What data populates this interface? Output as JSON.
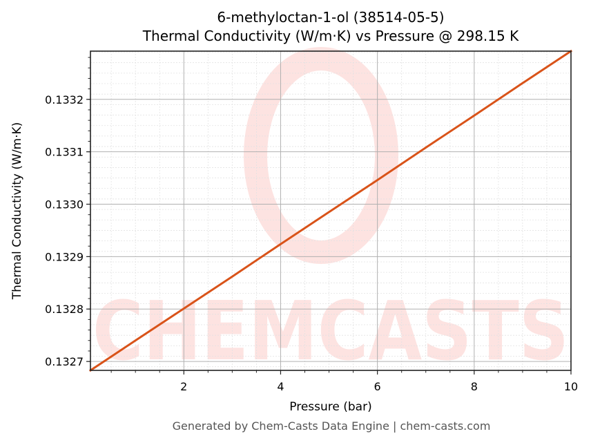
{
  "chart_data": {
    "type": "line",
    "title": "6-methyloctan-1-ol (38514-05-5)",
    "subtitle": "Thermal Conductivity (W/m·K) vs Pressure @ 298.15 K",
    "xlabel": "Pressure (bar)",
    "ylabel": "Thermal Conductivity (W/m·K)",
    "xlim": [
      0.07,
      10
    ],
    "ylim": [
      0.132683,
      0.133292
    ],
    "xticks": [
      2,
      4,
      6,
      8,
      10
    ],
    "xtick_labels": [
      "2",
      "4",
      "6",
      "8",
      "10"
    ],
    "yticks": [
      0.1327,
      0.1328,
      0.1329,
      0.133,
      0.1331,
      0.1332
    ],
    "ytick_labels": [
      "0.1327",
      "0.1328",
      "0.1329",
      "0.1330",
      "0.1331",
      "0.1332"
    ],
    "grid": true,
    "legend": null,
    "series": [
      {
        "name": "Thermal Conductivity",
        "color": "#d95319",
        "x": [
          0.07,
          1,
          2,
          3,
          4,
          5,
          6,
          7,
          8,
          9,
          10
        ],
        "y": [
          0.132683,
          0.13274,
          0.132801,
          0.132862,
          0.132924,
          0.132985,
          0.133046,
          0.133108,
          0.133169,
          0.133231,
          0.133292
        ]
      }
    ],
    "watermark": "CHEMCASTS"
  },
  "footer": "Generated by Chem-Casts Data Engine | chem-casts.com"
}
